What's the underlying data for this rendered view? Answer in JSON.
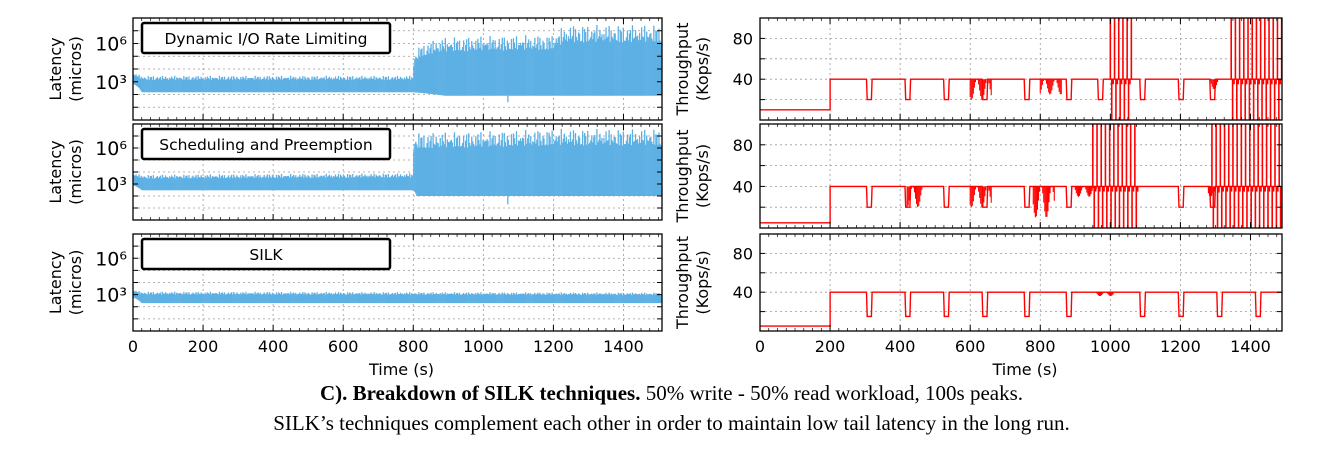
{
  "figure": {
    "caption_bold": "C). Breakdown of SILK techniques.",
    "caption_rest": " 50% write - 50% read workload, 100s peaks.",
    "caption_line2": "SILK’s techniques complement each other in order to maintain low tail latency in the long run."
  },
  "colors": {
    "latency": "#5db0e4",
    "throughput": "#ff0000"
  },
  "chart_data": [
    {
      "type": "area",
      "panel": "latency-1",
      "title": "Dynamic I/O Rate Limiting",
      "ylabel": [
        "Latency",
        "(micros)"
      ],
      "yscale": "log",
      "ylim": [
        1,
        100000000
      ],
      "yticks": [
        1000,
        1000000
      ],
      "ytick_labels": [
        "10³",
        "10⁶"
      ],
      "xlim": [
        0,
        1510
      ],
      "x": [
        0,
        25,
        800,
        890,
        1000,
        1200,
        1250,
        1510
      ],
      "low": [
        700,
        150,
        150,
        80,
        80,
        80,
        80,
        80
      ],
      "high": [
        5000,
        3000,
        3000,
        3000000,
        4000000,
        5000000,
        30000000,
        30000000
      ],
      "dips": [
        {
          "x": 1070,
          "value": 25
        }
      ]
    },
    {
      "type": "area",
      "panel": "latency-2",
      "title": "Scheduling and Preemption",
      "ylabel": [
        "Latency",
        "(micros)"
      ],
      "yscale": "log",
      "ylim": [
        1,
        100000000
      ],
      "yticks": [
        1000,
        1000000
      ],
      "ytick_labels": [
        "10³",
        "10⁶"
      ],
      "xlim": [
        0,
        1510
      ],
      "x": [
        0,
        25,
        800,
        810,
        1000,
        1220,
        1510
      ],
      "low": [
        800,
        300,
        300,
        100,
        100,
        100,
        100
      ],
      "high": [
        8000,
        6000,
        8000,
        20000000,
        25000000,
        40000000,
        40000000
      ],
      "dips": [
        {
          "x": 1070,
          "value": 20
        }
      ]
    },
    {
      "type": "area",
      "panel": "latency-3",
      "title": "SILK",
      "ylabel": [
        "Latency",
        "(micros)"
      ],
      "yscale": "log",
      "ylim": [
        1,
        100000000
      ],
      "yticks": [
        1000,
        1000000
      ],
      "ytick_labels": [
        "10³",
        "10⁶"
      ],
      "xlim": [
        0,
        1510
      ],
      "xticks": [
        0,
        200,
        400,
        600,
        800,
        1000,
        1200,
        1400
      ],
      "xlabel": "Time (s)",
      "x": [
        0,
        25,
        1510
      ],
      "low": [
        600,
        200,
        200
      ],
      "high": [
        2500,
        1800,
        1500
      ],
      "dips": []
    },
    {
      "type": "line",
      "panel": "throughput-1",
      "ylabel": [
        "Throughput",
        "(Kops/s)"
      ],
      "ylim": [
        0,
        100
      ],
      "yticks": [
        40,
        80
      ],
      "xlim": [
        0,
        1490
      ],
      "levels": {
        "low": 10,
        "base": 40,
        "dip": 20
      },
      "segments": [
        [
          0,
          200,
          10
        ],
        [
          200,
          1490,
          40
        ]
      ],
      "dips": [
        310,
        420,
        530,
        640,
        760,
        880,
        970,
        1090,
        1200,
        1290
      ],
      "noise": [
        [
          600,
          660,
          20,
          40
        ],
        [
          800,
          860,
          25,
          40
        ],
        [
          1285,
          1310,
          30,
          40
        ]
      ],
      "spikes": [
        [
          1000,
          1060,
          0,
          100
        ],
        [
          1345,
          1490,
          0,
          100
        ]
      ]
    },
    {
      "type": "line",
      "panel": "throughput-2",
      "ylabel": [
        "Throughput",
        "(Kops/s)"
      ],
      "ylim": [
        0,
        100
      ],
      "yticks": [
        40,
        80
      ],
      "xlim": [
        0,
        1490
      ],
      "levels": {
        "low": 5,
        "base": 40,
        "dip": 20
      },
      "segments": [
        [
          0,
          200,
          5
        ],
        [
          200,
          1490,
          40
        ]
      ],
      "dips": [
        310,
        420,
        530,
        640,
        760,
        880,
        1200,
        1290
      ],
      "noise": [
        [
          420,
          470,
          20,
          40
        ],
        [
          600,
          660,
          20,
          40
        ],
        [
          780,
          840,
          10,
          40
        ],
        [
          900,
          960,
          30,
          40
        ],
        [
          1280,
          1310,
          30,
          40
        ]
      ],
      "spikes": [
        [
          950,
          1080,
          0,
          100
        ],
        [
          1290,
          1490,
          0,
          100
        ]
      ]
    },
    {
      "type": "line",
      "panel": "throughput-3",
      "ylabel": [
        "Throughput",
        "(Kops/s)"
      ],
      "ylim": [
        0,
        100
      ],
      "yticks": [
        40,
        80
      ],
      "xlim": [
        0,
        1490
      ],
      "xticks": [
        0,
        200,
        400,
        600,
        800,
        1000,
        1200,
        1400
      ],
      "xlabel": "Time (s)",
      "levels": {
        "low": 5,
        "base": 40,
        "dip": 15
      },
      "segments": [
        [
          0,
          200,
          5
        ],
        [
          200,
          1490,
          40
        ]
      ],
      "dips": [
        310,
        420,
        530,
        640,
        760,
        880,
        1090,
        1200,
        1310,
        1420
      ],
      "noise": [
        [
          960,
          1010,
          36,
          40
        ]
      ],
      "spikes": []
    }
  ]
}
